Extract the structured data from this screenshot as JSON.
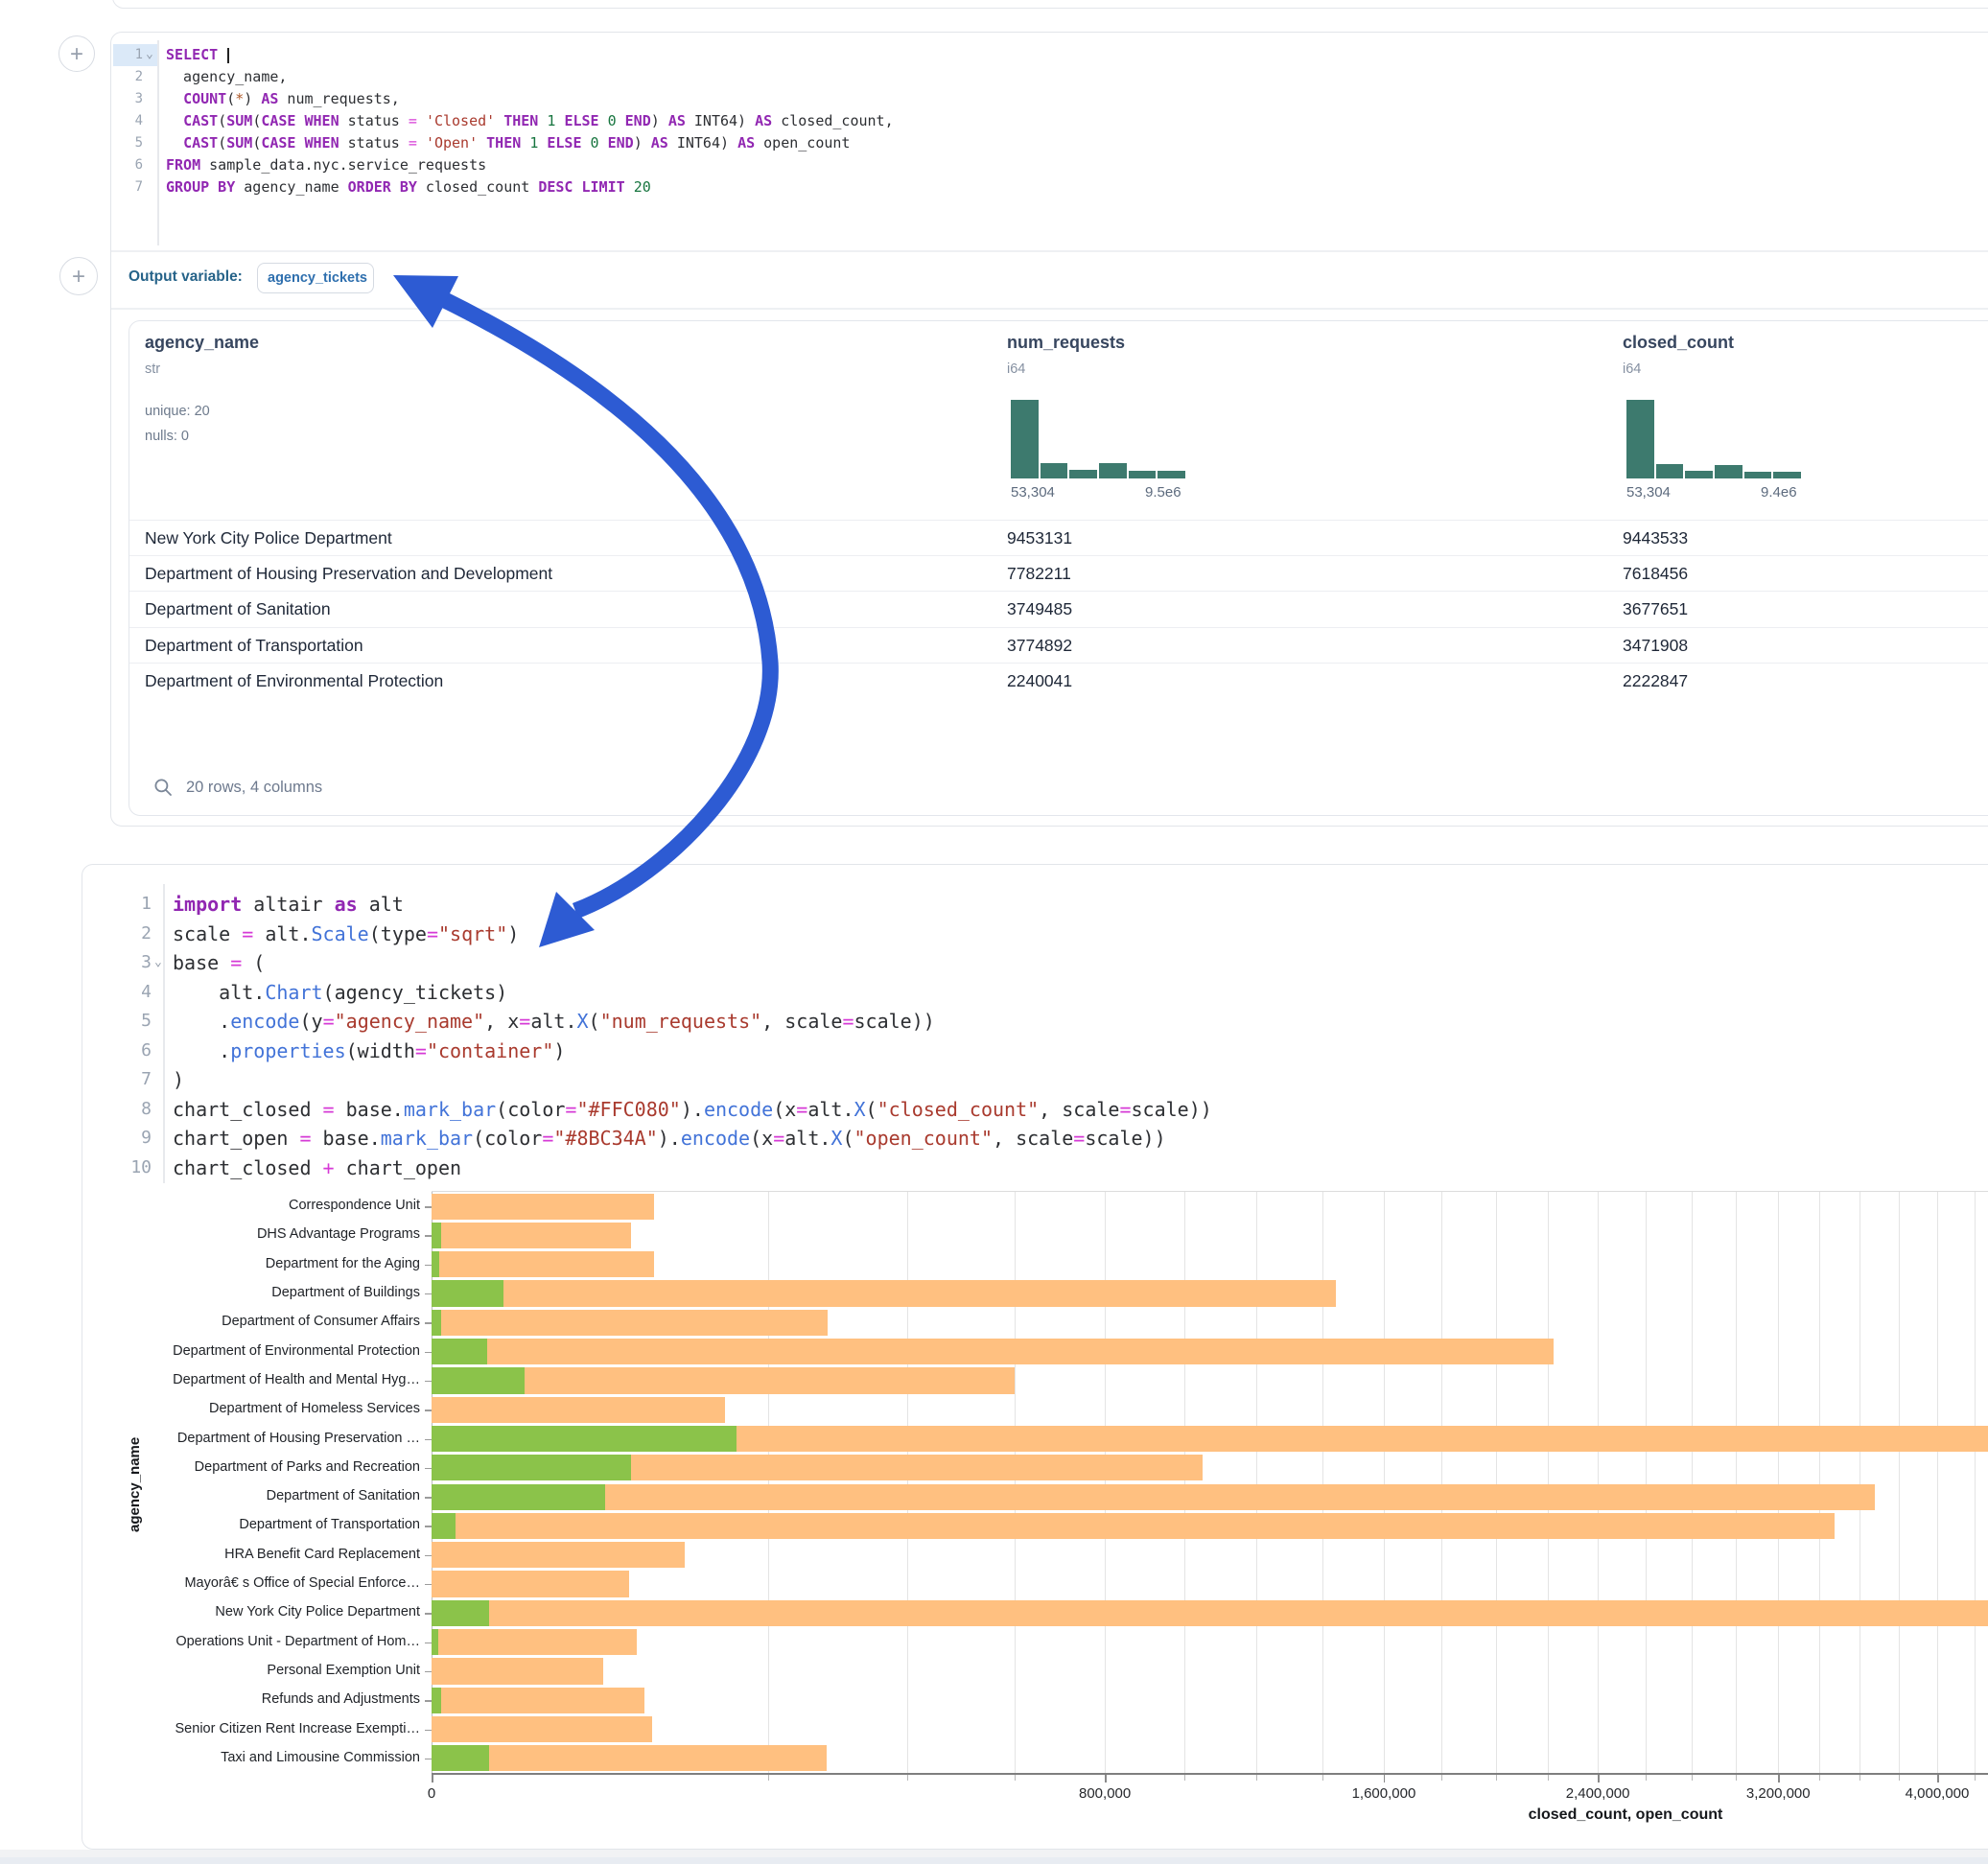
{
  "colors": {
    "arrow": "#2d5bd3",
    "bar_closed": "#FFC080",
    "bar_open": "#8BC34A",
    "histogram": "#3d7a6e"
  },
  "add_cell_button": "+",
  "sql_cell": {
    "fold_caret": "⌄",
    "lines": [
      {
        "n": "1",
        "active": true,
        "fold": true,
        "tokens": [
          {
            "t": "SELECT",
            "c": "kw"
          },
          {
            "t": " ",
            "c": "pl"
          },
          {
            "t": "",
            "c": "cursor"
          }
        ]
      },
      {
        "n": "2",
        "tokens": [
          {
            "t": "  agency_name,",
            "c": "pl"
          }
        ]
      },
      {
        "n": "3",
        "tokens": [
          {
            "t": "  ",
            "c": "pl"
          },
          {
            "t": "COUNT",
            "c": "kw"
          },
          {
            "t": "(",
            "c": "pl"
          },
          {
            "t": "*",
            "c": "star"
          },
          {
            "t": ") ",
            "c": "pl"
          },
          {
            "t": "AS",
            "c": "kw"
          },
          {
            "t": " num_requests,",
            "c": "pl"
          }
        ]
      },
      {
        "n": "4",
        "tokens": [
          {
            "t": "  ",
            "c": "pl"
          },
          {
            "t": "CAST",
            "c": "kw"
          },
          {
            "t": "(",
            "c": "pl"
          },
          {
            "t": "SUM",
            "c": "kw"
          },
          {
            "t": "(",
            "c": "pl"
          },
          {
            "t": "CASE WHEN",
            "c": "kw"
          },
          {
            "t": " status ",
            "c": "pl"
          },
          {
            "t": "=",
            "c": "op"
          },
          {
            "t": " ",
            "c": "pl"
          },
          {
            "t": "'Closed'",
            "c": "str"
          },
          {
            "t": " ",
            "c": "pl"
          },
          {
            "t": "THEN",
            "c": "kw"
          },
          {
            "t": " ",
            "c": "pl"
          },
          {
            "t": "1",
            "c": "num"
          },
          {
            "t": " ",
            "c": "pl"
          },
          {
            "t": "ELSE",
            "c": "kw"
          },
          {
            "t": " ",
            "c": "pl"
          },
          {
            "t": "0",
            "c": "num"
          },
          {
            "t": " ",
            "c": "pl"
          },
          {
            "t": "END",
            "c": "kw"
          },
          {
            "t": ") ",
            "c": "pl"
          },
          {
            "t": "AS",
            "c": "kw"
          },
          {
            "t": " INT64) ",
            "c": "pl"
          },
          {
            "t": "AS",
            "c": "kw"
          },
          {
            "t": " closed_count,",
            "c": "pl"
          }
        ]
      },
      {
        "n": "5",
        "tokens": [
          {
            "t": "  ",
            "c": "pl"
          },
          {
            "t": "CAST",
            "c": "kw"
          },
          {
            "t": "(",
            "c": "pl"
          },
          {
            "t": "SUM",
            "c": "kw"
          },
          {
            "t": "(",
            "c": "pl"
          },
          {
            "t": "CASE WHEN",
            "c": "kw"
          },
          {
            "t": " status ",
            "c": "pl"
          },
          {
            "t": "=",
            "c": "op"
          },
          {
            "t": " ",
            "c": "pl"
          },
          {
            "t": "'Open'",
            "c": "str"
          },
          {
            "t": " ",
            "c": "pl"
          },
          {
            "t": "THEN",
            "c": "kw"
          },
          {
            "t": " ",
            "c": "pl"
          },
          {
            "t": "1",
            "c": "num"
          },
          {
            "t": " ",
            "c": "pl"
          },
          {
            "t": "ELSE",
            "c": "kw"
          },
          {
            "t": " ",
            "c": "pl"
          },
          {
            "t": "0",
            "c": "num"
          },
          {
            "t": " ",
            "c": "pl"
          },
          {
            "t": "END",
            "c": "kw"
          },
          {
            "t": ") ",
            "c": "pl"
          },
          {
            "t": "AS",
            "c": "kw"
          },
          {
            "t": " INT64) ",
            "c": "pl"
          },
          {
            "t": "AS",
            "c": "kw"
          },
          {
            "t": " open_count",
            "c": "pl"
          }
        ]
      },
      {
        "n": "6",
        "tokens": [
          {
            "t": "FROM",
            "c": "kw"
          },
          {
            "t": " sample_data.nyc.service_requests",
            "c": "pl"
          }
        ]
      },
      {
        "n": "7",
        "tokens": [
          {
            "t": "GROUP BY",
            "c": "kw"
          },
          {
            "t": " agency_name ",
            "c": "pl"
          },
          {
            "t": "ORDER BY",
            "c": "kw"
          },
          {
            "t": " closed_count ",
            "c": "pl"
          },
          {
            "t": "DESC",
            "c": "kw"
          },
          {
            "t": " ",
            "c": "pl"
          },
          {
            "t": "LIMIT",
            "c": "kw"
          },
          {
            "t": " ",
            "c": "pl"
          },
          {
            "t": "20",
            "c": "num"
          }
        ]
      }
    ],
    "output_variable_label": "Output variable:",
    "output_variable": "agency_tickets"
  },
  "result_table": {
    "columns": [
      {
        "name": "agency_name",
        "type": "str",
        "stats": [
          "unique: 20",
          "nulls: 0"
        ]
      },
      {
        "name": "num_requests",
        "type": "i64",
        "hist": {
          "min_label": "53,304",
          "max_label": "9.5e6",
          "bars": [
            1,
            0.2,
            0.11,
            0.19,
            0.1,
            0.1
          ]
        }
      },
      {
        "name": "closed_count",
        "type": "i64",
        "hist": {
          "min_label": "53,304",
          "max_label": "9.4e6",
          "bars": [
            1,
            0.18,
            0.1,
            0.17,
            0.09,
            0.09
          ]
        }
      }
    ],
    "rows": [
      [
        "New York City Police Department",
        "9453131",
        "9443533"
      ],
      [
        "Department of Housing Preservation and Development",
        "7782211",
        "7618456"
      ],
      [
        "Department of Sanitation",
        "3749485",
        "3677651"
      ],
      [
        "Department of Transportation",
        "3774892",
        "3471908"
      ],
      [
        "Department of Environmental Protection",
        "2240041",
        "2222847"
      ]
    ],
    "footer": "20 rows, 4 columns"
  },
  "python_cell": {
    "fold_caret": "⌄",
    "lines": [
      {
        "n": "1",
        "tokens": [
          {
            "t": "import",
            "c": "kw"
          },
          {
            "t": " altair ",
            "c": "pl"
          },
          {
            "t": "as",
            "c": "kw"
          },
          {
            "t": " alt",
            "c": "pl"
          }
        ]
      },
      {
        "n": "2",
        "tokens": [
          {
            "t": "scale ",
            "c": "pl"
          },
          {
            "t": "=",
            "c": "op"
          },
          {
            "t": " alt.",
            "c": "pl"
          },
          {
            "t": "Scale",
            "c": "fn"
          },
          {
            "t": "(type",
            "c": "pl"
          },
          {
            "t": "=",
            "c": "op"
          },
          {
            "t": "\"sqrt\"",
            "c": "str"
          },
          {
            "t": ")",
            "c": "pl"
          }
        ]
      },
      {
        "n": "3",
        "fold": true,
        "tokens": [
          {
            "t": "base ",
            "c": "pl"
          },
          {
            "t": "=",
            "c": "op"
          },
          {
            "t": " (",
            "c": "pl"
          }
        ]
      },
      {
        "n": "4",
        "tokens": [
          {
            "t": "    alt.",
            "c": "pl"
          },
          {
            "t": "Chart",
            "c": "fn"
          },
          {
            "t": "(agency_tickets)",
            "c": "pl"
          }
        ]
      },
      {
        "n": "5",
        "tokens": [
          {
            "t": "    .",
            "c": "pl"
          },
          {
            "t": "encode",
            "c": "fn"
          },
          {
            "t": "(y",
            "c": "pl"
          },
          {
            "t": "=",
            "c": "op"
          },
          {
            "t": "\"agency_name\"",
            "c": "str"
          },
          {
            "t": ", x",
            "c": "pl"
          },
          {
            "t": "=",
            "c": "op"
          },
          {
            "t": "alt.",
            "c": "pl"
          },
          {
            "t": "X",
            "c": "fn"
          },
          {
            "t": "(",
            "c": "pl"
          },
          {
            "t": "\"num_requests\"",
            "c": "str"
          },
          {
            "t": ", scale",
            "c": "pl"
          },
          {
            "t": "=",
            "c": "op"
          },
          {
            "t": "scale))",
            "c": "pl"
          }
        ]
      },
      {
        "n": "6",
        "tokens": [
          {
            "t": "    .",
            "c": "pl"
          },
          {
            "t": "properties",
            "c": "fn"
          },
          {
            "t": "(width",
            "c": "pl"
          },
          {
            "t": "=",
            "c": "op"
          },
          {
            "t": "\"container\"",
            "c": "str"
          },
          {
            "t": ")",
            "c": "pl"
          }
        ]
      },
      {
        "n": "7",
        "tokens": [
          {
            "t": ")",
            "c": "pl"
          }
        ]
      },
      {
        "n": "8",
        "tokens": [
          {
            "t": "chart_closed ",
            "c": "pl"
          },
          {
            "t": "=",
            "c": "op"
          },
          {
            "t": " base.",
            "c": "pl"
          },
          {
            "t": "mark_bar",
            "c": "fn"
          },
          {
            "t": "(color",
            "c": "pl"
          },
          {
            "t": "=",
            "c": "op"
          },
          {
            "t": "\"#FFC080\"",
            "c": "str"
          },
          {
            "t": ").",
            "c": "pl"
          },
          {
            "t": "encode",
            "c": "fn"
          },
          {
            "t": "(x",
            "c": "pl"
          },
          {
            "t": "=",
            "c": "op"
          },
          {
            "t": "alt.",
            "c": "pl"
          },
          {
            "t": "X",
            "c": "fn"
          },
          {
            "t": "(",
            "c": "pl"
          },
          {
            "t": "\"closed_count\"",
            "c": "str"
          },
          {
            "t": ", scale",
            "c": "pl"
          },
          {
            "t": "=",
            "c": "op"
          },
          {
            "t": "scale))",
            "c": "pl"
          }
        ]
      },
      {
        "n": "9",
        "tokens": [
          {
            "t": "chart_open ",
            "c": "pl"
          },
          {
            "t": "=",
            "c": "op"
          },
          {
            "t": " base.",
            "c": "pl"
          },
          {
            "t": "mark_bar",
            "c": "fn"
          },
          {
            "t": "(color",
            "c": "pl"
          },
          {
            "t": "=",
            "c": "op"
          },
          {
            "t": "\"#8BC34A\"",
            "c": "str"
          },
          {
            "t": ").",
            "c": "pl"
          },
          {
            "t": "encode",
            "c": "fn"
          },
          {
            "t": "(x",
            "c": "pl"
          },
          {
            "t": "=",
            "c": "op"
          },
          {
            "t": "alt.",
            "c": "pl"
          },
          {
            "t": "X",
            "c": "fn"
          },
          {
            "t": "(",
            "c": "pl"
          },
          {
            "t": "\"open_count\"",
            "c": "str"
          },
          {
            "t": ", scale",
            "c": "pl"
          },
          {
            "t": "=",
            "c": "op"
          },
          {
            "t": "scale))",
            "c": "pl"
          }
        ]
      },
      {
        "n": "10",
        "tokens": [
          {
            "t": "chart_closed ",
            "c": "pl"
          },
          {
            "t": "+",
            "c": "op"
          },
          {
            "t": " chart_open",
            "c": "pl"
          }
        ]
      }
    ]
  },
  "chart_data": {
    "type": "bar",
    "orientation": "horizontal",
    "x_scale_type": "sqrt",
    "xlabel": "closed_count, open_count",
    "ylabel": "agency_name",
    "x_tick_values": [
      0,
      800000,
      1600000,
      2400000,
      3200000,
      4000000
    ],
    "x_tick_labels": [
      "0",
      "800,000",
      "1,600,000",
      "2,400,000",
      "3,200,000",
      "4,000,000"
    ],
    "grid_value_interval": 200000,
    "legend_position": "none",
    "categories": [
      "Correspondence Unit",
      "DHS Advantage Programs",
      "Department for the Aging",
      "Department of Buildings",
      "Department of Consumer Affairs",
      "Department of Environmental Protection",
      "Department of Health and Mental Hyg…",
      "Department of Homeless Services",
      "Department of Housing Preservation …",
      "Department of Parks and Recreation",
      "Department of Sanitation",
      "Department of Transportation",
      "HRA Benefit Card Replacement",
      "Mayorâ€ s Office of Special Enforce…",
      "New York City Police Department",
      "Operations Unit - Department of Hom…",
      "Personal Exemption Unit",
      "Refunds and Adjustments",
      "Senior Citizen Rent Increase Exempti…",
      "Taxi and Limousine Commission"
    ],
    "series": [
      {
        "name": "closed_count",
        "color": "#FFC080",
        "values": [
          87000,
          70000,
          87000,
          1443000,
          277000,
          2222847,
          600000,
          152000,
          7618456,
          1050000,
          3677651,
          3471908,
          113000,
          69000,
          9443533,
          74000,
          52000,
          80000,
          85500,
          275000
        ]
      },
      {
        "name": "open_count",
        "color": "#8BC34A",
        "values": [
          0,
          150,
          100,
          9200,
          150,
          5400,
          15200,
          0,
          163755,
          70000,
          53000,
          1000,
          0,
          0,
          5900,
          70,
          0,
          175,
          0,
          5900
        ]
      }
    ]
  }
}
